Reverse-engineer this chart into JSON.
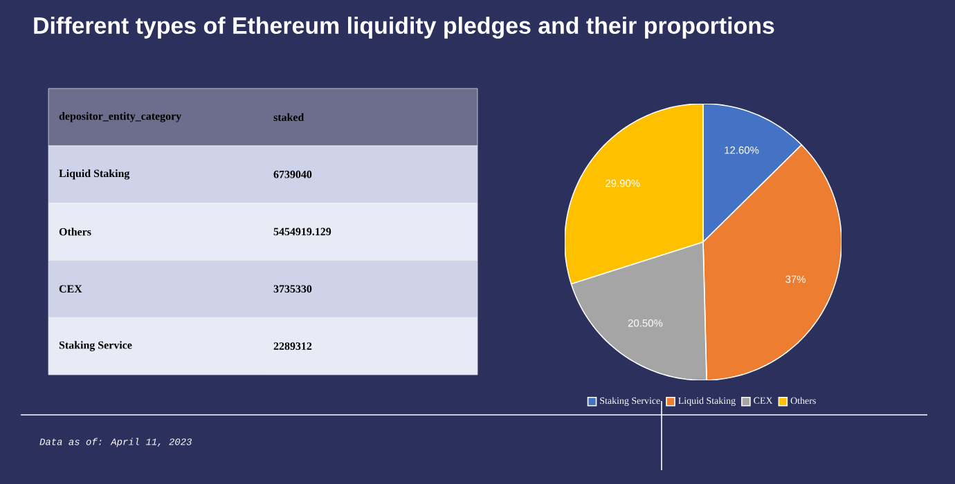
{
  "chart_data": [
    {
      "type": "other",
      "title": "Different types of Ethereum liquidity pledges and their proportions",
      "annotations": [
        "depositor_entity_category",
        "staked",
        "Liquid Staking",
        "6739040",
        "Others",
        "5454919.129",
        "CEX",
        "3735330",
        "Staking Service",
        "2289312"
      ]
    },
    {
      "type": "pie",
      "categories": [
        "Staking Service",
        "Liquid Staking",
        "CEX",
        "Others"
      ],
      "values": [
        12.6,
        37,
        20.5,
        29.9
      ],
      "colors": [
        "#4472c4",
        "#ed7d31",
        "#a5a5a5",
        "#ffc000"
      ],
      "value_labels": [
        "12.60%",
        "37%",
        "20.50%",
        "29.90%"
      ],
      "legend": "bottom",
      "annotations": [
        "Data as of: April 11, 2023"
      ]
    }
  ]
}
